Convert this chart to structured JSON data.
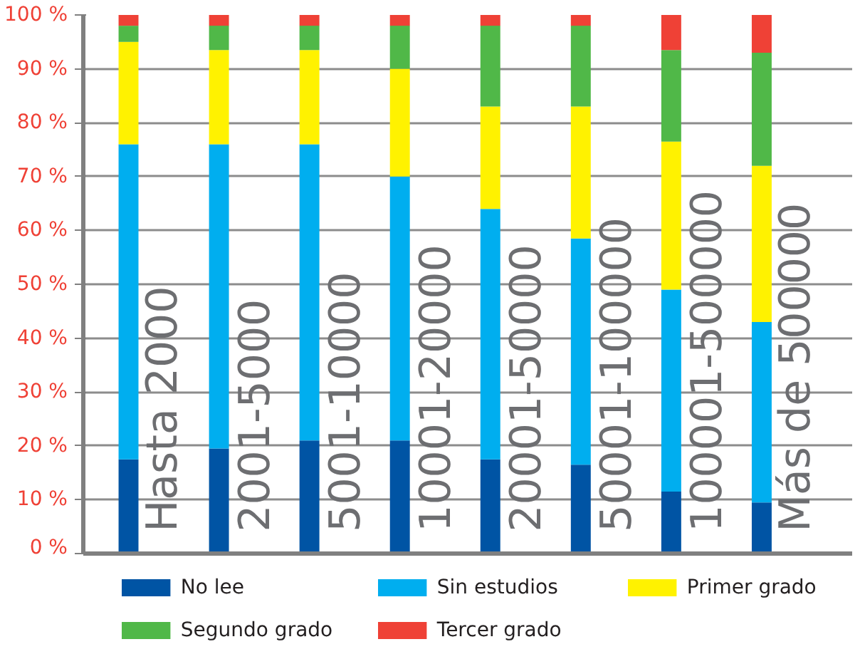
{
  "chart_data": {
    "type": "bar",
    "stacked": true,
    "categories": [
      "Hasta 2000",
      "2001-5000",
      "5001-10000",
      "10001-20000",
      "20001-50000",
      "50001-100000",
      "100001-500000",
      "Más de 500000"
    ],
    "series": [
      {
        "name": "No lee",
        "color": "#0054a4",
        "values": [
          17.5,
          19.5,
          21,
          21,
          17.5,
          16.5,
          11.5,
          9.5
        ]
      },
      {
        "name": "Sin estudios",
        "color": "#00aeef",
        "values": [
          58.5,
          56.5,
          55,
          49,
          46.5,
          42,
          37.5,
          33.5
        ]
      },
      {
        "name": "Primer grado",
        "color": "#fff200",
        "values": [
          19,
          17.5,
          17.5,
          20,
          19,
          24.5,
          27.5,
          29
        ]
      },
      {
        "name": "Segundo grado",
        "color": "#50b848",
        "values": [
          3,
          4.5,
          4.5,
          8,
          15,
          15,
          17,
          21
        ]
      },
      {
        "name": "Tercer grado",
        "color": "#ef4136",
        "values": [
          2,
          2,
          2,
          2,
          2,
          2,
          6.5,
          7
        ]
      }
    ],
    "ylim": [
      0,
      100
    ],
    "yticks": [
      {
        "value": 0,
        "label": "0 %"
      },
      {
        "value": 10,
        "label": "10 %"
      },
      {
        "value": 20,
        "label": "20 %"
      },
      {
        "value": 30,
        "label": "30 %"
      },
      {
        "value": 40,
        "label": "40 %"
      },
      {
        "value": 50,
        "label": "50 %"
      },
      {
        "value": 60,
        "label": "60 %"
      },
      {
        "value": 70,
        "label": "70 %"
      },
      {
        "value": 80,
        "label": "80 %"
      },
      {
        "value": 90,
        "label": "90 %"
      },
      {
        "value": 100,
        "label": "100 %"
      }
    ],
    "grid": "y",
    "legend": "bottom"
  }
}
